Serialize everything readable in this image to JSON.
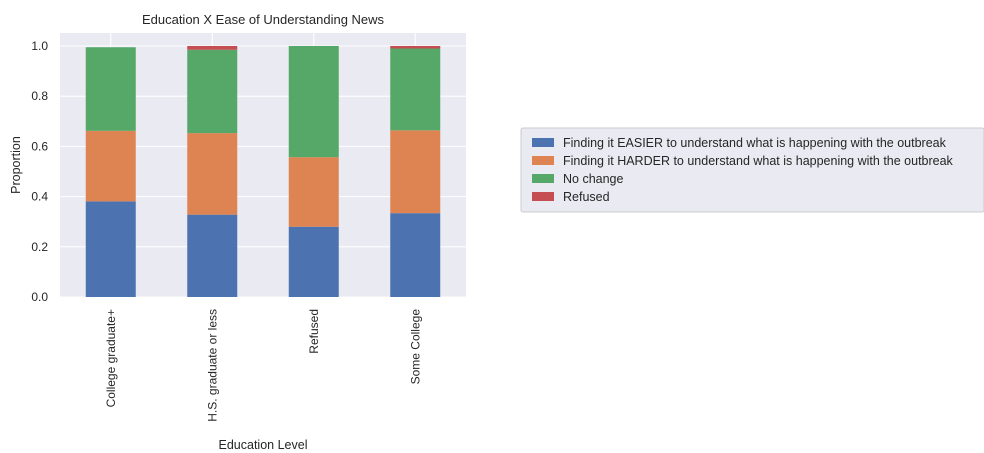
{
  "chart_data": {
    "type": "bar",
    "stacked": true,
    "title": "Education X Ease of Understanding News",
    "xlabel": "Education Level",
    "ylabel": "Proportion",
    "ylim": [
      0,
      1.0
    ],
    "yticks": [
      "0.0",
      "0.2",
      "0.4",
      "0.6",
      "0.8",
      "1.0"
    ],
    "grid": true,
    "legend_position": "right",
    "categories": [
      "College graduate+",
      "H.S. graduate or less",
      "Refused",
      "Some College"
    ],
    "series": [
      {
        "name": "Finding it EASIER to understand what is happening with the outbreak",
        "color": "#4c72b0",
        "values": [
          0.381,
          0.328,
          0.28,
          0.334
        ]
      },
      {
        "name": "Finding it HARDER to understand what is happening with the outbreak",
        "color": "#dd8452",
        "values": [
          0.281,
          0.325,
          0.277,
          0.33
        ]
      },
      {
        "name": "No change",
        "color": "#55a868",
        "values": [
          0.333,
          0.332,
          0.443,
          0.326
        ]
      },
      {
        "name": "Refused",
        "color": "#c44e52",
        "values": [
          0.0,
          0.015,
          0.0,
          0.01
        ]
      }
    ]
  }
}
